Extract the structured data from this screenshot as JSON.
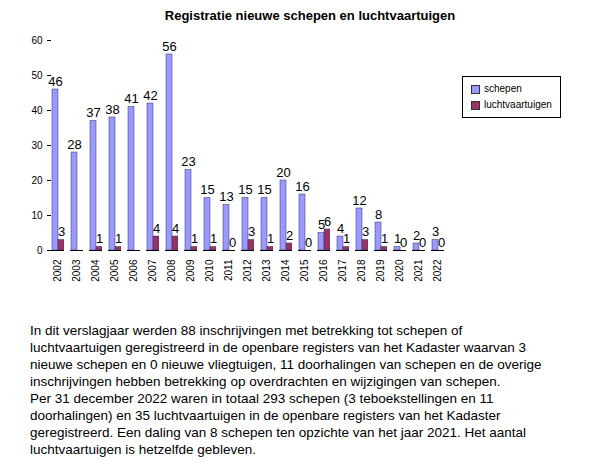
{
  "chart_data": {
    "type": "bar",
    "title": "Registratie nieuwe schepen en luchtvaartuigen",
    "categories": [
      "2002",
      "2003",
      "2004",
      "2005",
      "2006",
      "2007",
      "2008",
      "2009",
      "2010",
      "2011",
      "2012",
      "2013",
      "2014",
      "2015",
      "2016",
      "2017",
      "2018",
      "2019",
      "2020",
      "2021",
      "2022"
    ],
    "series": [
      {
        "name": "schepen",
        "color": "#9999ff",
        "values": [
          46,
          28,
          37,
          38,
          41,
          42,
          56,
          23,
          15,
          13,
          15,
          15,
          20,
          16,
          5,
          4,
          12,
          8,
          1,
          2,
          3
        ]
      },
      {
        "name": "luchtvaartuigen",
        "color": "#993366",
        "values": [
          3,
          null,
          1,
          1,
          null,
          4,
          4,
          1,
          1,
          0,
          3,
          1,
          2,
          0,
          6,
          1,
          3,
          1,
          0,
          0,
          0
        ]
      }
    ],
    "ylim": [
      0,
      60
    ],
    "yticks": [
      0,
      10,
      20,
      30,
      40,
      50,
      60
    ],
    "grid": false,
    "data_labels": true,
    "legend": "top-right"
  },
  "text": {
    "lines": [
      "In dit verslagjaar werden 88 inschrijvingen met betrekking tot schepen of",
      "luchtvaartuigen geregistreerd in de openbare registers van het Kadaster waarvan 3",
      "nieuwe schepen en 0 nieuwe vliegtuigen, 11 doorhalingen van schepen en de overige",
      "inschrijvingen hebben betrekking op overdrachten en wijzigingen van schepen.",
      "Per 31 december 2022 waren in totaal 293 schepen (3 teboekstellingen en 11",
      "doorhalingen) en 35 luchtvaartuigen in de openbare registers van het Kadaster",
      "geregistreerd. Een daling van 8 schepen ten opzichte van het jaar 2021. Het aantal",
      "luchtvaartuigen is hetzelfde gebleven."
    ]
  }
}
